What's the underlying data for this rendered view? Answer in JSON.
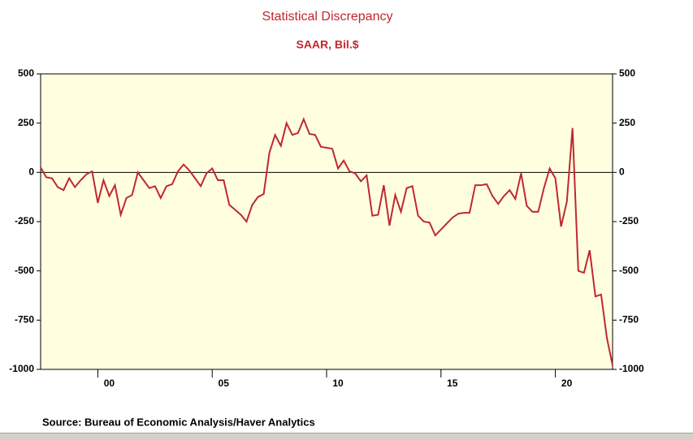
{
  "chart_data": {
    "type": "line",
    "title": "Statistical Discrepancy",
    "subtitle": "SAAR, Bil.$",
    "source": "Source:  Bureau of Economic Analysis/Haver Analytics",
    "x": [
      1997.5,
      1997.75,
      1998,
      1998.25,
      1998.5,
      1998.75,
      1999,
      1999.25,
      1999.5,
      1999.75,
      2000,
      2000.25,
      2000.5,
      2000.75,
      2001,
      2001.25,
      2001.5,
      2001.75,
      2002,
      2002.25,
      2002.5,
      2002.75,
      2003,
      2003.25,
      2003.5,
      2003.75,
      2004,
      2004.25,
      2004.5,
      2004.75,
      2005,
      2005.25,
      2005.5,
      2005.75,
      2006,
      2006.25,
      2006.5,
      2006.75,
      2007,
      2007.25,
      2007.5,
      2007.75,
      2008,
      2008.25,
      2008.5,
      2008.75,
      2009,
      2009.25,
      2009.5,
      2009.75,
      2010,
      2010.25,
      2010.5,
      2010.75,
      2011,
      2011.25,
      2011.5,
      2011.75,
      2012,
      2012.25,
      2012.5,
      2012.75,
      2013,
      2013.25,
      2013.5,
      2013.75,
      2014,
      2014.25,
      2014.5,
      2014.75,
      2015,
      2015.25,
      2015.5,
      2015.75,
      2016,
      2016.25,
      2016.5,
      2016.75,
      2017,
      2017.25,
      2017.5,
      2017.75,
      2018,
      2018.25,
      2018.5,
      2018.75,
      2019,
      2019.25,
      2019.5,
      2019.75,
      2020,
      2020.25,
      2020.5,
      2020.75,
      2021,
      2021.25,
      2021.5,
      2021.75,
      2022,
      2022.25,
      2022.5
    ],
    "series": [
      {
        "name": "Statistical Discrepancy",
        "color": "#c0282e",
        "values": [
          25,
          -25,
          -30,
          -75,
          -90,
          -30,
          -75,
          -40,
          -10,
          5,
          -155,
          -40,
          -120,
          -65,
          -215,
          -130,
          -115,
          0,
          -40,
          -80,
          -70,
          -130,
          -70,
          -60,
          5,
          40,
          10,
          -30,
          -70,
          -5,
          20,
          -40,
          -40,
          -165,
          -190,
          -215,
          -250,
          -165,
          -125,
          -110,
          100,
          190,
          135,
          250,
          190,
          200,
          270,
          195,
          190,
          130,
          125,
          120,
          20,
          60,
          5,
          -5,
          -45,
          -15,
          -220,
          -215,
          -65,
          -270,
          -115,
          -200,
          -80,
          -70,
          -220,
          -250,
          -255,
          -320,
          -290,
          -260,
          -230,
          -210,
          -205,
          -205,
          -65,
          -65,
          -60,
          -120,
          -160,
          -120,
          -90,
          -135,
          -5,
          -170,
          -200,
          -200,
          -80,
          20,
          -30,
          -275,
          -150,
          225,
          -500,
          -510,
          -395,
          -630,
          -620,
          -840,
          -980
        ]
      }
    ],
    "xlim": [
      1997.5,
      2022.5
    ],
    "xticks": [
      {
        "value": 2000,
        "label": "00"
      },
      {
        "value": 2005,
        "label": "05"
      },
      {
        "value": 2010,
        "label": "10"
      },
      {
        "value": 2015,
        "label": "15"
      },
      {
        "value": 2020,
        "label": "20"
      }
    ],
    "ylim": [
      -1000,
      500
    ],
    "yticks": [
      500,
      250,
      0,
      -250,
      -500,
      -750,
      -1000
    ],
    "plot_background": "#ffffe0"
  }
}
